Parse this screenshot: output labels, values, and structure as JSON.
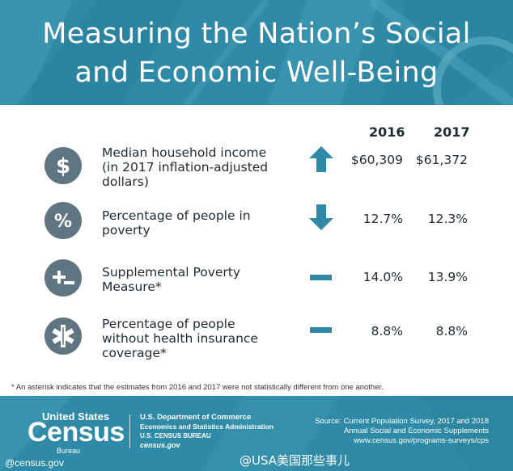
{
  "header": {
    "title_line1": "Measuring the Nation’s Social",
    "title_line2": "and Economic Well-Being",
    "background_color": "#2e8aa6"
  },
  "table": {
    "year_columns": [
      "2016",
      "2017"
    ],
    "rows": [
      {
        "icon": "dollar-icon",
        "label_lines": [
          "Median household income",
          "(in 2017 inflation-adjusted",
          "dollars)"
        ],
        "trend": "up-arrow-icon",
        "value_2016": "$60,309",
        "value_2017": "$61,372"
      },
      {
        "icon": "percent-icon",
        "label_lines": [
          "Percentage of people in",
          "poverty"
        ],
        "trend": "down-arrow-icon",
        "value_2016": "12.7%",
        "value_2017": "12.3%"
      },
      {
        "icon": "plus-minus-icon",
        "label_lines": [
          "Supplemental Poverty",
          "Measure*"
        ],
        "trend": "dash-icon",
        "value_2016": "14.0%",
        "value_2017": "13.9%"
      },
      {
        "icon": "medical-star-icon",
        "label_lines": [
          "Percentage of people",
          "without health insurance",
          "coverage*"
        ],
        "trend": "dash-icon",
        "value_2016": "8.8%",
        "value_2017": "8.8%"
      }
    ],
    "icon_color": "#5f7682",
    "trend_color": "#2e8aa6"
  },
  "footnote": "* An asterisk indicates that the estimates from 2016 and 2017 were not statistically different from one another.",
  "footer": {
    "logo_top": "United States",
    "logo_main": "Census",
    "logo_bottom": "Bureau",
    "dept_lines": [
      "U.S. Department of Commerce",
      "Economics and Statistics Administration",
      "U.S. CENSUS BUREAU",
      "census.gov"
    ],
    "source_lines": [
      "Source: Current Population Survey, 2017 and 2018",
      "Annual Social and Economic Supplements",
      "www.census.gov/programs-surveys/cps"
    ]
  },
  "watermarks": {
    "left": "@census.gov",
    "right": "@USA美国那些事儿"
  }
}
